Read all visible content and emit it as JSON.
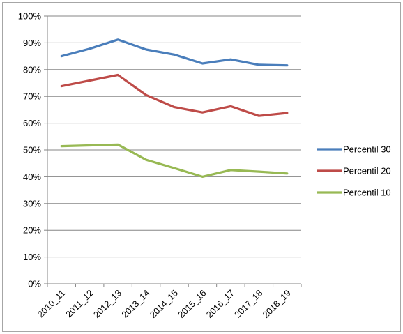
{
  "chart_data": {
    "type": "line",
    "title": "",
    "xlabel": "",
    "ylabel": "",
    "categories": [
      "2010_11",
      "2011_12",
      "2012_13",
      "2013_14",
      "2014_15",
      "2015_16",
      "2016_17",
      "2017_18",
      "2018_19"
    ],
    "ylim": [
      0,
      100
    ],
    "y_ticks": [
      "0%",
      "10%",
      "20%",
      "30%",
      "40%",
      "50%",
      "60%",
      "70%",
      "80%",
      "90%",
      "100%"
    ],
    "y_tick_values": [
      0,
      10,
      20,
      30,
      40,
      50,
      60,
      70,
      80,
      90,
      100
    ],
    "grid": true,
    "legend_position": "right",
    "series": [
      {
        "name": "Percentil 30",
        "color": "#4a7ebb",
        "values": [
          85.0,
          87.8,
          91.2,
          87.5,
          85.6,
          82.3,
          83.8,
          81.8,
          81.6
        ]
      },
      {
        "name": "Percentil 20",
        "color": "#be4b48",
        "values": [
          73.8,
          75.9,
          78.0,
          70.5,
          66.0,
          64.0,
          66.3,
          62.7,
          63.8
        ]
      },
      {
        "name": "Percentil 10",
        "color": "#98b954",
        "values": [
          51.4,
          51.7,
          52.0,
          46.3,
          43.2,
          40.0,
          42.5,
          41.9,
          41.2
        ]
      }
    ]
  }
}
